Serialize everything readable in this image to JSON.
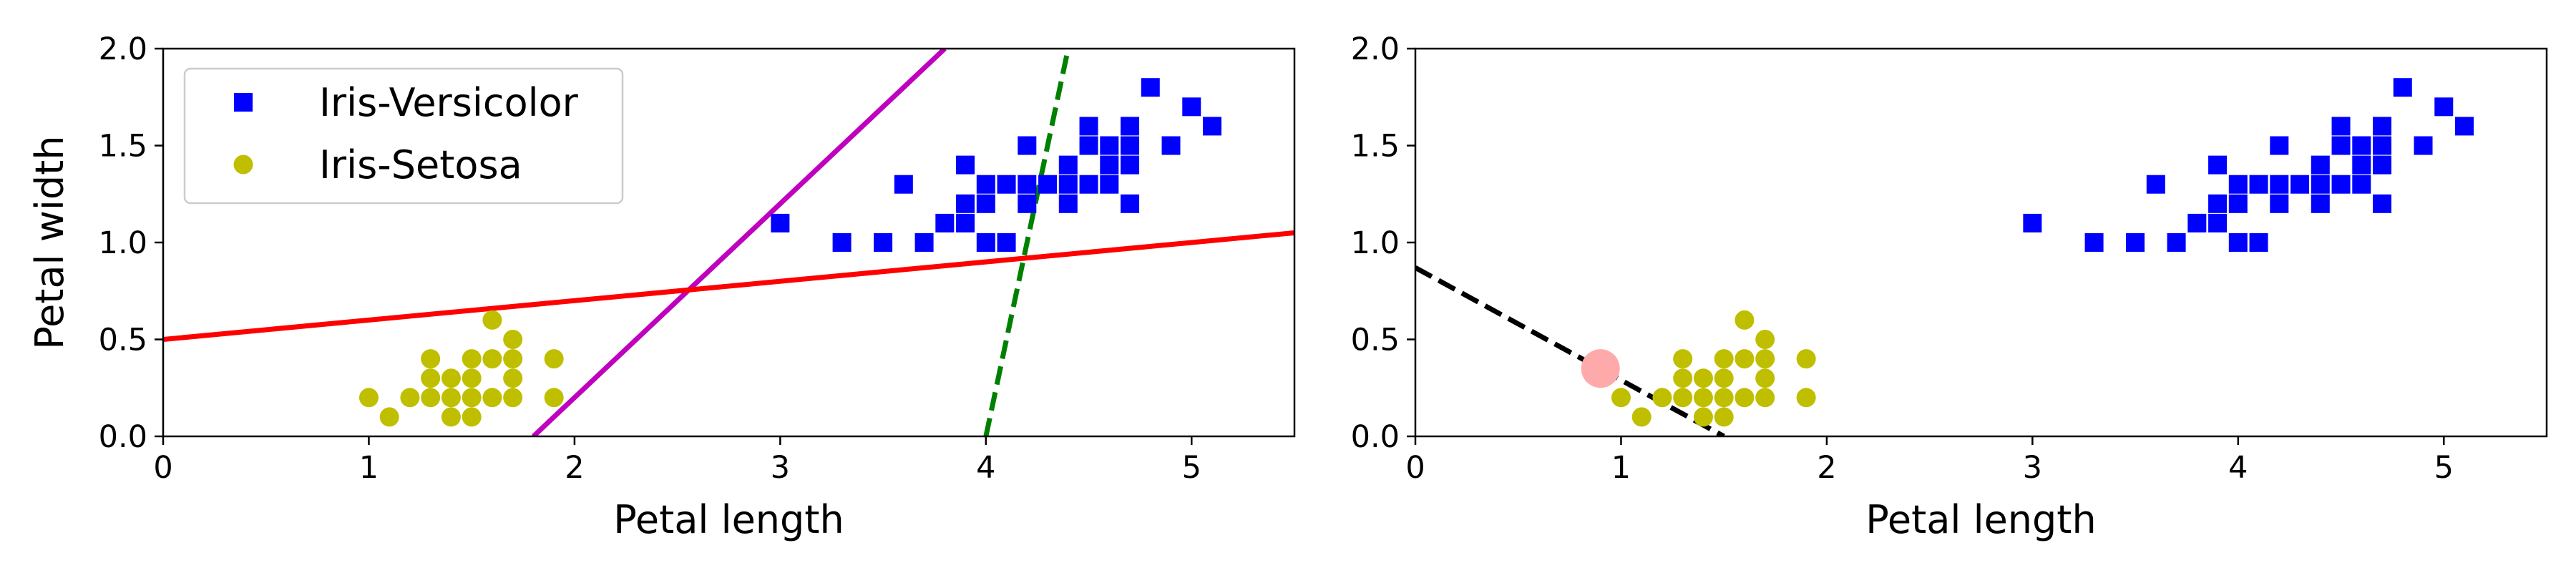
{
  "chart_data": [
    {
      "type": "scatter",
      "xlabel": "Petal length",
      "ylabel": "Petal width",
      "xlim": [
        0,
        5.5
      ],
      "ylim": [
        0,
        2.0
      ],
      "xticks": [
        "0",
        "1",
        "2",
        "3",
        "4",
        "5"
      ],
      "yticks": [
        "0.0",
        "0.5",
        "1.0",
        "1.5",
        "2.0"
      ],
      "legend_position": "top-left",
      "grid": false,
      "series": [
        {
          "name": "Iris-Versicolor",
          "marker": "square",
          "color": "#0000ff",
          "points": [
            [
              3.0,
              1.1
            ],
            [
              3.3,
              1.0
            ],
            [
              3.5,
              1.0
            ],
            [
              3.6,
              1.3
            ],
            [
              3.7,
              1.0
            ],
            [
              3.8,
              1.1
            ],
            [
              3.9,
              1.1
            ],
            [
              3.9,
              1.2
            ],
            [
              3.9,
              1.4
            ],
            [
              4.0,
              1.0
            ],
            [
              4.0,
              1.2
            ],
            [
              4.0,
              1.3
            ],
            [
              4.1,
              1.0
            ],
            [
              4.1,
              1.3
            ],
            [
              4.2,
              1.2
            ],
            [
              4.2,
              1.3
            ],
            [
              4.2,
              1.5
            ],
            [
              4.3,
              1.3
            ],
            [
              4.4,
              1.2
            ],
            [
              4.4,
              1.3
            ],
            [
              4.4,
              1.4
            ],
            [
              4.5,
              1.3
            ],
            [
              4.5,
              1.5
            ],
            [
              4.5,
              1.6
            ],
            [
              4.6,
              1.3
            ],
            [
              4.6,
              1.4
            ],
            [
              4.6,
              1.5
            ],
            [
              4.7,
              1.2
            ],
            [
              4.7,
              1.4
            ],
            [
              4.7,
              1.5
            ],
            [
              4.7,
              1.6
            ],
            [
              4.8,
              1.8
            ],
            [
              4.9,
              1.5
            ],
            [
              5.0,
              1.7
            ],
            [
              5.1,
              1.6
            ]
          ]
        },
        {
          "name": "Iris-Setosa",
          "marker": "circle",
          "color": "#bfbf00",
          "points": [
            [
              1.0,
              0.2
            ],
            [
              1.1,
              0.1
            ],
            [
              1.2,
              0.2
            ],
            [
              1.3,
              0.2
            ],
            [
              1.3,
              0.3
            ],
            [
              1.3,
              0.4
            ],
            [
              1.4,
              0.1
            ],
            [
              1.4,
              0.2
            ],
            [
              1.4,
              0.3
            ],
            [
              1.5,
              0.1
            ],
            [
              1.5,
              0.2
            ],
            [
              1.5,
              0.3
            ],
            [
              1.5,
              0.4
            ],
            [
              1.6,
              0.2
            ],
            [
              1.6,
              0.4
            ],
            [
              1.6,
              0.6
            ],
            [
              1.7,
              0.2
            ],
            [
              1.7,
              0.3
            ],
            [
              1.7,
              0.4
            ],
            [
              1.7,
              0.5
            ],
            [
              1.9,
              0.2
            ],
            [
              1.9,
              0.4
            ]
          ]
        }
      ],
      "lines": [
        {
          "color": "#008000",
          "style": "dashed",
          "points": [
            [
              4.0,
              0.0
            ],
            [
              4.4,
              2.0
            ]
          ]
        },
        {
          "color": "#bf00bf",
          "style": "solid",
          "points": [
            [
              1.8,
              0.0
            ],
            [
              3.8,
              2.0
            ]
          ]
        },
        {
          "color": "#ff0000",
          "style": "solid",
          "points": [
            [
              0.0,
              0.5
            ],
            [
              5.5,
              1.05
            ]
          ]
        }
      ]
    },
    {
      "type": "scatter",
      "xlabel": "Petal length",
      "ylabel": "",
      "xlim": [
        0,
        5.5
      ],
      "ylim": [
        0,
        2.0
      ],
      "xticks": [
        "0",
        "1",
        "2",
        "3",
        "4",
        "5"
      ],
      "yticks": [
        "0.0",
        "0.5",
        "1.0",
        "1.5",
        "2.0"
      ],
      "grid": false,
      "series": [
        {
          "marker": "square",
          "color": "#0000ff",
          "points": [
            [
              3.0,
              1.1
            ],
            [
              3.3,
              1.0
            ],
            [
              3.5,
              1.0
            ],
            [
              3.6,
              1.3
            ],
            [
              3.7,
              1.0
            ],
            [
              3.8,
              1.1
            ],
            [
              3.9,
              1.1
            ],
            [
              3.9,
              1.2
            ],
            [
              3.9,
              1.4
            ],
            [
              4.0,
              1.0
            ],
            [
              4.0,
              1.2
            ],
            [
              4.0,
              1.3
            ],
            [
              4.1,
              1.0
            ],
            [
              4.1,
              1.3
            ],
            [
              4.2,
              1.2
            ],
            [
              4.2,
              1.3
            ],
            [
              4.2,
              1.5
            ],
            [
              4.3,
              1.3
            ],
            [
              4.4,
              1.2
            ],
            [
              4.4,
              1.3
            ],
            [
              4.4,
              1.4
            ],
            [
              4.5,
              1.3
            ],
            [
              4.5,
              1.5
            ],
            [
              4.5,
              1.6
            ],
            [
              4.6,
              1.3
            ],
            [
              4.6,
              1.4
            ],
            [
              4.6,
              1.5
            ],
            [
              4.7,
              1.2
            ],
            [
              4.7,
              1.4
            ],
            [
              4.7,
              1.5
            ],
            [
              4.7,
              1.6
            ],
            [
              4.8,
              1.8
            ],
            [
              4.9,
              1.5
            ],
            [
              5.0,
              1.7
            ],
            [
              5.1,
              1.6
            ]
          ]
        },
        {
          "marker": "circle",
          "color": "#bfbf00",
          "points": [
            [
              1.0,
              0.2
            ],
            [
              1.1,
              0.1
            ],
            [
              1.2,
              0.2
            ],
            [
              1.3,
              0.2
            ],
            [
              1.3,
              0.3
            ],
            [
              1.3,
              0.4
            ],
            [
              1.4,
              0.1
            ],
            [
              1.4,
              0.2
            ],
            [
              1.4,
              0.3
            ],
            [
              1.5,
              0.1
            ],
            [
              1.5,
              0.2
            ],
            [
              1.5,
              0.3
            ],
            [
              1.5,
              0.4
            ],
            [
              1.6,
              0.2
            ],
            [
              1.6,
              0.4
            ],
            [
              1.6,
              0.6
            ],
            [
              1.7,
              0.2
            ],
            [
              1.7,
              0.3
            ],
            [
              1.7,
              0.4
            ],
            [
              1.7,
              0.5
            ],
            [
              1.9,
              0.2
            ],
            [
              1.9,
              0.4
            ]
          ]
        },
        {
          "marker": "circle-large",
          "color": "#ffaaaa",
          "points": [
            [
              0.9,
              0.35
            ]
          ]
        }
      ],
      "lines": [
        {
          "color": "#000000",
          "style": "dashed",
          "points": [
            [
              0.0,
              0.87
            ],
            [
              1.5,
              0.0
            ]
          ]
        }
      ]
    }
  ]
}
